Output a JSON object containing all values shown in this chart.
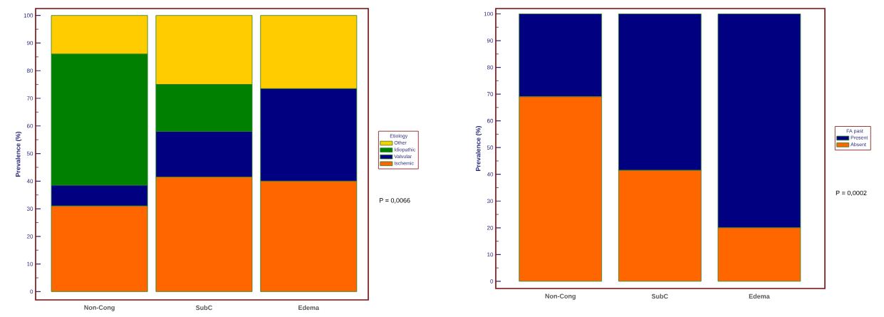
{
  "chart_data": [
    {
      "type": "bar",
      "stacked": true,
      "categories": [
        "Non-Cong",
        "SubC",
        "Edema"
      ],
      "ylabel": "Prevalence (%)",
      "ylim": [
        -3,
        102.5
      ],
      "yticks": [
        0,
        {
          "value": 5,
          "label": null
        },
        10,
        {
          "value": 15,
          "label": null
        },
        20,
        {
          "value": 25,
          "label": null
        },
        30,
        {
          "value": 35,
          "label": null
        },
        40,
        {
          "value": 45,
          "label": null
        },
        50,
        {
          "value": 55,
          "label": null
        },
        60,
        {
          "value": 65,
          "label": null
        },
        70,
        {
          "value": 75,
          "label": null
        },
        80,
        {
          "value": 85,
          "label": null
        },
        90,
        {
          "value": 95,
          "label": null
        },
        100
      ],
      "legend": "right",
      "legend_title": "Etiology",
      "annotations": [
        "P = 0,0066"
      ],
      "series": [
        {
          "name": "Ischemic",
          "color": "#ff6600",
          "values": [
            31,
            41.5,
            40
          ]
        },
        {
          "name": "Valvular",
          "color": "#000080",
          "values": [
            7.5,
            16.5,
            33.5
          ]
        },
        {
          "name": "Idiopathic",
          "color": "#008000",
          "values": [
            47.5,
            17,
            0
          ]
        },
        {
          "name": "Other",
          "color": "#ffcc00",
          "values": [
            14,
            25,
            26.5
          ]
        }
      ]
    },
    {
      "type": "bar",
      "stacked": true,
      "categories": [
        "Non-Cong",
        "SubC",
        "Edema"
      ],
      "ylabel": "Prevalence (%)",
      "ylim": [
        -2.7,
        102
      ],
      "yticks": [
        0,
        {
          "value": 5,
          "label": null
        },
        10,
        {
          "value": 15,
          "label": null
        },
        20,
        {
          "value": 25,
          "label": null
        },
        30,
        {
          "value": 35,
          "label": null
        },
        40,
        {
          "value": 45,
          "label": null
        },
        50,
        {
          "value": 55,
          "label": null
        },
        60,
        {
          "value": 65,
          "label": null
        },
        70,
        {
          "value": 75,
          "label": null
        },
        80,
        {
          "value": 85,
          "label": null
        },
        90,
        {
          "value": 95,
          "label": null
        },
        100
      ],
      "legend": "right",
      "legend_title": "FA past",
      "annotations": [
        "P = 0,0002"
      ],
      "series": [
        {
          "name": "Absent",
          "color": "#ff6600",
          "values": [
            69,
            41.5,
            20
          ]
        },
        {
          "name": "Present",
          "color": "#000080",
          "values": [
            31,
            58.5,
            80
          ]
        }
      ]
    }
  ]
}
